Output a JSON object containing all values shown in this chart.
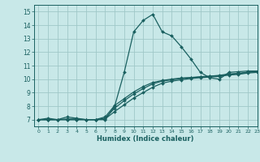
{
  "title": "",
  "xlabel": "Humidex (Indice chaleur)",
  "bg_color": "#c8e8e8",
  "grid_color": "#a0c8c8",
  "line_color": "#1a6060",
  "xlim": [
    -0.5,
    23
  ],
  "ylim": [
    6.5,
    15.5
  ],
  "xticks": [
    0,
    1,
    2,
    3,
    4,
    5,
    6,
    7,
    8,
    9,
    10,
    11,
    12,
    13,
    14,
    15,
    16,
    17,
    18,
    19,
    20,
    21,
    22,
    23
  ],
  "yticks": [
    7,
    8,
    9,
    10,
    11,
    12,
    13,
    14,
    15
  ],
  "series": [
    {
      "x": [
        0,
        1,
        2,
        3,
        4,
        5,
        6,
        7,
        8,
        9,
        10,
        11,
        12,
        13,
        14,
        15,
        16,
        17,
        18,
        19,
        20,
        21,
        22,
        23
      ],
      "y": [
        7.0,
        7.1,
        7.0,
        7.2,
        7.1,
        7.0,
        7.0,
        7.0,
        8.0,
        10.5,
        13.5,
        14.35,
        14.8,
        13.5,
        13.2,
        12.4,
        11.5,
        10.5,
        10.1,
        10.0,
        10.5,
        10.55,
        10.6,
        10.6
      ]
    },
    {
      "x": [
        0,
        1,
        2,
        3,
        4,
        5,
        6,
        7,
        8,
        9,
        10,
        11,
        12,
        13,
        14,
        15,
        16,
        17,
        18,
        19,
        20,
        21,
        22,
        23
      ],
      "y": [
        7.0,
        7.0,
        7.0,
        7.0,
        7.0,
        7.0,
        7.0,
        7.05,
        7.6,
        8.1,
        8.6,
        9.0,
        9.4,
        9.7,
        9.85,
        9.95,
        10.05,
        10.1,
        10.15,
        10.2,
        10.3,
        10.35,
        10.45,
        10.5
      ]
    },
    {
      "x": [
        0,
        1,
        2,
        3,
        4,
        5,
        6,
        7,
        8,
        9,
        10,
        11,
        12,
        13,
        14,
        15,
        16,
        17,
        18,
        19,
        20,
        21,
        22,
        23
      ],
      "y": [
        7.0,
        7.0,
        7.0,
        7.0,
        7.0,
        7.0,
        7.0,
        7.1,
        7.85,
        8.4,
        8.9,
        9.3,
        9.65,
        9.85,
        9.95,
        10.05,
        10.1,
        10.15,
        10.2,
        10.25,
        10.35,
        10.4,
        10.5,
        10.55
      ]
    },
    {
      "x": [
        0,
        1,
        2,
        3,
        4,
        5,
        6,
        7,
        8,
        9,
        10,
        11,
        12,
        13,
        14,
        15,
        16,
        17,
        18,
        19,
        20,
        21,
        22,
        23
      ],
      "y": [
        7.0,
        7.0,
        7.0,
        7.05,
        7.05,
        7.0,
        7.0,
        7.2,
        8.05,
        8.55,
        9.05,
        9.45,
        9.75,
        9.9,
        10.0,
        10.08,
        10.12,
        10.18,
        10.22,
        10.28,
        10.38,
        10.43,
        10.52,
        10.57
      ]
    }
  ]
}
